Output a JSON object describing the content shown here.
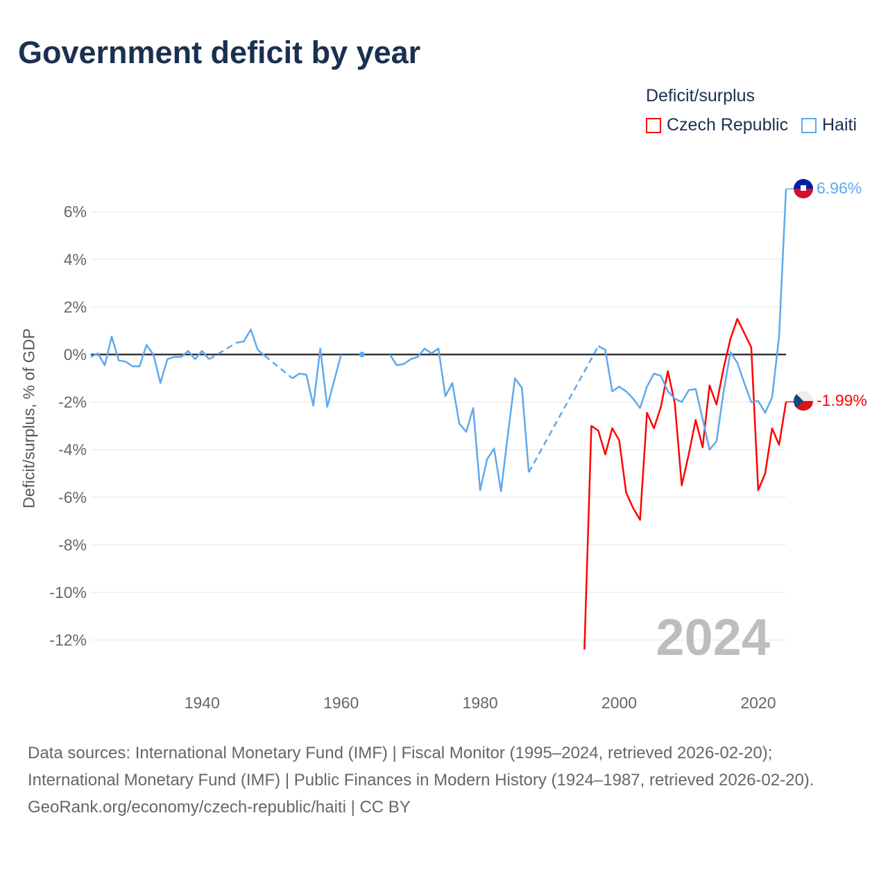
{
  "title": "Government deficit by year",
  "legend": {
    "title": "Deficit/surplus",
    "items": [
      {
        "label": "Czech Republic",
        "color": "#ff0000"
      },
      {
        "label": "Haiti",
        "color": "#5ea8ee"
      }
    ]
  },
  "year_watermark": "2024",
  "footer": {
    "sources": "Data sources: International Monetary Fund (IMF) | Fiscal Monitor (1995–2024, retrieved 2026-02-20); International Monetary Fund (IMF) | Public Finances in Modern History (1924–1987, retrieved 2026-02-20).",
    "credit": "GeoRank.org/economy/czech-republic/haiti | CC BY"
  },
  "chart_data": {
    "type": "line",
    "title": "Government deficit by year",
    "xlabel": "",
    "ylabel": "Deficit/surplus, % of GDP",
    "xlim": [
      1924,
      2024
    ],
    "ylim": [
      -13.5,
      7.2
    ],
    "x_ticks": [
      1940,
      1960,
      1980,
      2000,
      2020
    ],
    "y_ticks": [
      6,
      4,
      2,
      0,
      -2,
      -4,
      -6,
      -8,
      -10,
      -12
    ],
    "y_tick_labels": [
      "6%",
      "4%",
      "2%",
      "0%",
      "-2%",
      "-4%",
      "-6%",
      "-8%",
      "-10%",
      "-12%"
    ],
    "legend_position": "top-right",
    "series": [
      {
        "name": "Haiti",
        "color": "#5ea8ee",
        "end_label": "6.96%",
        "interpolated_gaps": [
          [
            1941,
            1945
          ],
          [
            1949,
            1953
          ],
          [
            1987,
            1997
          ]
        ],
        "points": [
          [
            1924,
            -0.1
          ],
          [
            1925,
            0.05
          ],
          [
            1926,
            -0.45
          ],
          [
            1927,
            0.75
          ],
          [
            1928,
            -0.25
          ],
          [
            1929,
            -0.3
          ],
          [
            1930,
            -0.5
          ],
          [
            1931,
            -0.5
          ],
          [
            1932,
            0.4
          ],
          [
            1933,
            0
          ],
          [
            1934,
            -1.2
          ],
          [
            1935,
            -0.2
          ],
          [
            1936,
            -0.1
          ],
          [
            1937,
            -0.1
          ],
          [
            1938,
            0.15
          ],
          [
            1939,
            -0.2
          ],
          [
            1940,
            0.15
          ],
          [
            1941,
            -0.2
          ],
          [
            1945,
            0.5
          ],
          [
            1946,
            0.55
          ],
          [
            1947,
            1.05
          ],
          [
            1948,
            0.2
          ],
          [
            1949,
            -0.05
          ],
          [
            1953,
            -1.0
          ],
          [
            1954,
            -0.8
          ],
          [
            1955,
            -0.85
          ],
          [
            1956,
            -2.15
          ],
          [
            1957,
            0.25
          ],
          [
            1958,
            -2.2
          ],
          [
            1959,
            -1.1
          ],
          [
            1960,
            0
          ],
          [
            1963,
            0
          ],
          [
            1967,
            0
          ],
          [
            1968,
            -0.45
          ],
          [
            1969,
            -0.4
          ],
          [
            1970,
            -0.2
          ],
          [
            1971,
            -0.1
          ],
          [
            1972,
            0.25
          ],
          [
            1973,
            0.05
          ],
          [
            1974,
            0.25
          ],
          [
            1975,
            -1.75
          ],
          [
            1976,
            -1.2
          ],
          [
            1977,
            -2.9
          ],
          [
            1978,
            -3.25
          ],
          [
            1979,
            -2.25
          ],
          [
            1980,
            -5.7
          ],
          [
            1981,
            -4.4
          ],
          [
            1982,
            -3.95
          ],
          [
            1983,
            -5.75
          ],
          [
            1984,
            -3.35
          ],
          [
            1985,
            -1.0
          ],
          [
            1986,
            -1.4
          ],
          [
            1987,
            -4.95
          ],
          [
            1997,
            0.35
          ],
          [
            1998,
            0.2
          ],
          [
            1999,
            -1.55
          ],
          [
            2000,
            -1.35
          ],
          [
            2001,
            -1.55
          ],
          [
            2002,
            -1.85
          ],
          [
            2003,
            -2.25
          ],
          [
            2004,
            -1.35
          ],
          [
            2005,
            -0.8
          ],
          [
            2006,
            -0.9
          ],
          [
            2007,
            -1.55
          ],
          [
            2008,
            -1.85
          ],
          [
            2009,
            -2.0
          ],
          [
            2010,
            -1.5
          ],
          [
            2011,
            -1.45
          ],
          [
            2012,
            -2.7
          ],
          [
            2013,
            -4.0
          ],
          [
            2014,
            -3.65
          ],
          [
            2015,
            -1.6
          ],
          [
            2016,
            0.1
          ],
          [
            2017,
            -0.35
          ],
          [
            2018,
            -1.2
          ],
          [
            2019,
            -2.0
          ],
          [
            2020,
            -1.95
          ],
          [
            2021,
            -2.45
          ],
          [
            2022,
            -1.8
          ],
          [
            2023,
            0.75
          ],
          [
            2024,
            6.96
          ]
        ]
      },
      {
        "name": "Czech Republic",
        "color": "#ff0000",
        "end_label": "-1.99%",
        "interpolated_gaps": [],
        "points": [
          [
            1995,
            -12.4
          ],
          [
            1996,
            -3.0
          ],
          [
            1997,
            -3.2
          ],
          [
            1998,
            -4.2
          ],
          [
            1999,
            -3.1
          ],
          [
            2000,
            -3.6
          ],
          [
            2001,
            -5.8
          ],
          [
            2002,
            -6.45
          ],
          [
            2003,
            -6.95
          ],
          [
            2004,
            -2.45
          ],
          [
            2005,
            -3.1
          ],
          [
            2006,
            -2.2
          ],
          [
            2007,
            -0.7
          ],
          [
            2008,
            -2.05
          ],
          [
            2009,
            -5.5
          ],
          [
            2010,
            -4.2
          ],
          [
            2011,
            -2.75
          ],
          [
            2012,
            -3.9
          ],
          [
            2013,
            -1.3
          ],
          [
            2014,
            -2.1
          ],
          [
            2015,
            -0.6
          ],
          [
            2016,
            0.65
          ],
          [
            2017,
            1.5
          ],
          [
            2018,
            0.9
          ],
          [
            2019,
            0.3
          ],
          [
            2020,
            -5.7
          ],
          [
            2021,
            -5.0
          ],
          [
            2022,
            -3.1
          ],
          [
            2023,
            -3.8
          ],
          [
            2024,
            -1.99
          ]
        ]
      }
    ]
  }
}
